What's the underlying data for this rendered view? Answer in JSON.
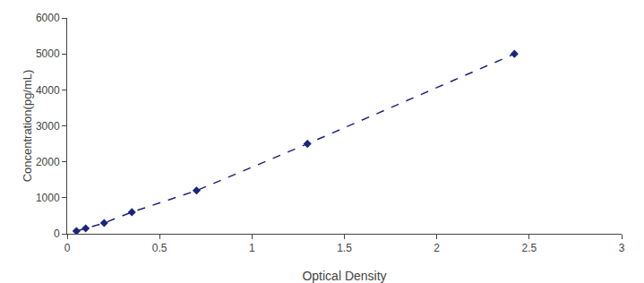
{
  "chart_data": {
    "type": "line",
    "x": [
      0.05,
      0.1,
      0.2,
      0.35,
      0.7,
      1.3,
      2.42
    ],
    "values": [
      75,
      150,
      300,
      600,
      1200,
      2500,
      5000
    ],
    "color": "#1a237e",
    "marker": "diamond",
    "line_style": "dashed",
    "xlabel": "Optical Density",
    "ylabel": "Concentration(pg/mL)",
    "xlim": [
      0,
      3
    ],
    "ylim": [
      0,
      6000
    ],
    "xticks": [
      0,
      0.5,
      1,
      1.5,
      2,
      2.5,
      3
    ],
    "yticks": [
      0,
      1000,
      2000,
      3000,
      4000,
      5000,
      6000
    ],
    "grid": false
  }
}
